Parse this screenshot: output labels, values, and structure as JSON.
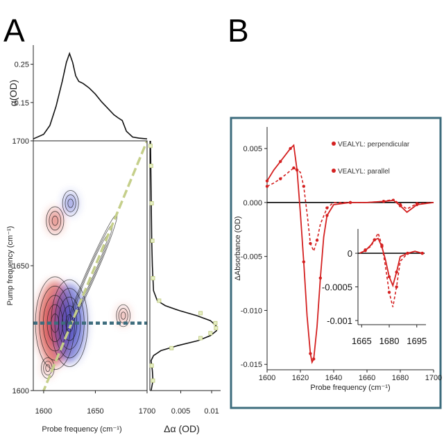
{
  "panels": {
    "a_label": "A",
    "b_label": "B"
  },
  "colors": {
    "pos_contour": "#d23b32",
    "neg_contour": "#3d48c8",
    "diag_dashed": "#c5cf8a",
    "cut_dashed": "#3d6c7d",
    "frame_b": "#3d6c7d",
    "series_red": "#d42020"
  },
  "chart_data": [
    {
      "id": "A-top",
      "type": "line",
      "ylabel": "α(OD)",
      "ylim": [
        0.05,
        0.3
      ],
      "y_ticks": [
        "0.25",
        "0.15"
      ],
      "y_tick_values": [
        0.25,
        0.15
      ],
      "xlim": [
        1590,
        1700
      ],
      "series": [
        {
          "x": [
            1590,
            1600,
            1606,
            1612,
            1618,
            1622,
            1625,
            1628,
            1631,
            1634,
            1638,
            1644,
            1650,
            1656,
            1662,
            1668,
            1672,
            1676,
            1680,
            1686,
            1692,
            1700
          ],
          "values": [
            0.055,
            0.067,
            0.09,
            0.14,
            0.205,
            0.255,
            0.278,
            0.255,
            0.22,
            0.205,
            0.2,
            0.188,
            0.172,
            0.152,
            0.135,
            0.118,
            0.11,
            0.103,
            0.075,
            0.06,
            0.057,
            0.055
          ]
        }
      ]
    },
    {
      "id": "A-2D",
      "type": "heatmap",
      "xlabel": "Probe frequency (cm⁻¹)",
      "ylabel": "Pump frequency (cm⁻¹)",
      "xlim": [
        1590,
        1700
      ],
      "ylim": [
        1600,
        1700
      ],
      "x_ticks": [
        "1600",
        "1650",
        "1700"
      ],
      "x_tick_values": [
        1600,
        1650,
        1700
      ],
      "y_ticks": [
        "1700",
        "1650",
        "1600"
      ],
      "y_tick_values": [
        1700,
        1650,
        1600
      ],
      "peaks": [
        {
          "sign": "positive",
          "probe": 1611,
          "pump": 1627,
          "amplitude": 1.0
        },
        {
          "sign": "positive",
          "probe": 1611,
          "pump": 1668,
          "amplitude": 0.55
        },
        {
          "sign": "negative",
          "probe": 1625,
          "pump": 1627,
          "amplitude": 0.9
        },
        {
          "sign": "negative",
          "probe": 1626,
          "pump": 1675,
          "amplitude": 0.45
        },
        {
          "sign": "positive",
          "probe": 1677,
          "pump": 1630,
          "amplitude": 0.3
        },
        {
          "sign": "positive",
          "probe": 1604,
          "pump": 1609,
          "amplitude": 0.25
        }
      ],
      "diagonal_cut_pump": 1627
    },
    {
      "id": "A-right",
      "type": "line",
      "xlabel": "Δα (OD)",
      "x_ticks": [
        "0.005",
        "0.01"
      ],
      "x_tick_values": [
        0.005,
        0.01
      ],
      "xlim": [
        0.0,
        0.011
      ],
      "ylim": [
        1600,
        1700
      ],
      "series": [
        {
          "name": "fit",
          "y": [
            1600,
            1604,
            1608,
            1612,
            1614,
            1616,
            1618,
            1620,
            1622,
            1624,
            1626,
            1628,
            1630,
            1632,
            1634,
            1636,
            1640,
            1650,
            1660,
            1680,
            1700
          ],
          "values": [
            0.0002,
            0.0005,
            0.0004,
            0.0002,
            0.0006,
            0.0018,
            0.0045,
            0.0078,
            0.0098,
            0.0108,
            0.0107,
            0.0098,
            0.0076,
            0.0048,
            0.0025,
            0.0012,
            0.0006,
            0.0004,
            0.0003,
            0.0002,
            0.0001
          ]
        },
        {
          "name": "data",
          "y": [
            1604,
            1610,
            1617,
            1621,
            1623,
            1625,
            1627,
            1631,
            1636,
            1645,
            1660,
            1675,
            1690,
            1698
          ],
          "values": [
            0.0005,
            0.0003,
            0.0035,
            0.0082,
            0.0098,
            0.0107,
            0.0106,
            0.0082,
            0.0015,
            0.0005,
            0.0004,
            0.0003,
            0.0002,
            0.0001
          ]
        }
      ]
    },
    {
      "id": "B-main",
      "type": "line",
      "xlabel": "Probe frequency (cm⁻¹)",
      "ylabel": "ΔAbsorbance (OD)",
      "xlim": [
        1600,
        1700
      ],
      "ylim": [
        -0.0155,
        0.007
      ],
      "x_ticks": [
        "1600",
        "1620",
        "1640",
        "1660",
        "1680",
        "1700"
      ],
      "x_tick_values": [
        1600,
        1620,
        1640,
        1660,
        1680,
        1700
      ],
      "y_ticks": [
        "0.005",
        "0.000",
        "-0.005",
        "-0.010",
        "-0.015"
      ],
      "y_tick_values": [
        0.005,
        0.0,
        -0.005,
        -0.01,
        -0.015
      ],
      "legend": [
        "VEALYL: perpendicular",
        "VEALYL: parallel"
      ],
      "series": [
        {
          "name": "VEALYL: perpendicular",
          "style": "dashed",
          "x": [
            1600,
            1604,
            1608,
            1612,
            1616,
            1620,
            1622,
            1624,
            1626,
            1628,
            1630,
            1632,
            1636,
            1640,
            1650,
            1660,
            1670,
            1676,
            1680,
            1684,
            1690,
            1700
          ],
          "values": [
            0.0015,
            0.0018,
            0.0022,
            0.0027,
            0.0032,
            0.0028,
            0.0015,
            -0.001,
            -0.0038,
            -0.0045,
            -0.0035,
            -0.002,
            -0.0005,
            0.0,
            0.0,
            0.0,
            0.0001,
            0.0003,
            -0.0002,
            -0.0006,
            -0.0001,
            0.0
          ]
        },
        {
          "name": "VEALYL: parallel",
          "style": "solid",
          "x": [
            1600,
            1604,
            1608,
            1612,
            1614,
            1616,
            1618,
            1620,
            1622,
            1624,
            1626,
            1627,
            1628,
            1630,
            1632,
            1634,
            1636,
            1640,
            1650,
            1660,
            1670,
            1676,
            1680,
            1684,
            1690,
            1700
          ],
          "values": [
            0.002,
            0.003,
            0.0038,
            0.0046,
            0.005,
            0.0053,
            0.003,
            -0.001,
            -0.0055,
            -0.0105,
            -0.014,
            -0.0148,
            -0.0145,
            -0.0115,
            -0.007,
            -0.0032,
            -0.0012,
            -0.0002,
            0.0,
            0.0,
            0.0001,
            0.0002,
            -0.0003,
            -0.0009,
            -0.0002,
            0.0
          ]
        }
      ]
    },
    {
      "id": "B-inset",
      "type": "line",
      "xlim": [
        1663,
        1700
      ],
      "ylim": [
        -0.001,
        0.0003
      ],
      "x_ticks": [
        "1665",
        "1680",
        "1695"
      ],
      "x_tick_values": [
        1665,
        1680,
        1695
      ],
      "y_ticks": [
        "0",
        "-0.0005",
        "-0.001"
      ],
      "y_tick_values": [
        0,
        -0.0005,
        -0.001
      ],
      "series": [
        {
          "name": "VEALYL: perpendicular",
          "style": "dashed",
          "x": [
            1664,
            1667,
            1670,
            1672,
            1674,
            1676,
            1678,
            1680,
            1682,
            1684,
            1686,
            1690,
            1694,
            1698
          ],
          "values": [
            0.0,
            5e-05,
            0.0001,
            0.0002,
            0.0003,
            0.00012,
            -0.0002,
            -0.00058,
            -0.0008,
            -0.0005,
            -0.00012,
            0.0,
            3e-05,
            0.0
          ]
        },
        {
          "name": "VEALYL: parallel",
          "style": "solid",
          "x": [
            1664,
            1667,
            1670,
            1672,
            1674,
            1676,
            1678,
            1680,
            1682,
            1684,
            1686,
            1690,
            1694,
            1698
          ],
          "values": [
            0.0,
            4e-05,
            0.00012,
            0.0002,
            0.00022,
            0.0001,
            -0.0001,
            -0.00035,
            -0.00048,
            -0.00028,
            -5e-05,
            0.0,
            3e-05,
            0.0
          ]
        }
      ]
    }
  ]
}
